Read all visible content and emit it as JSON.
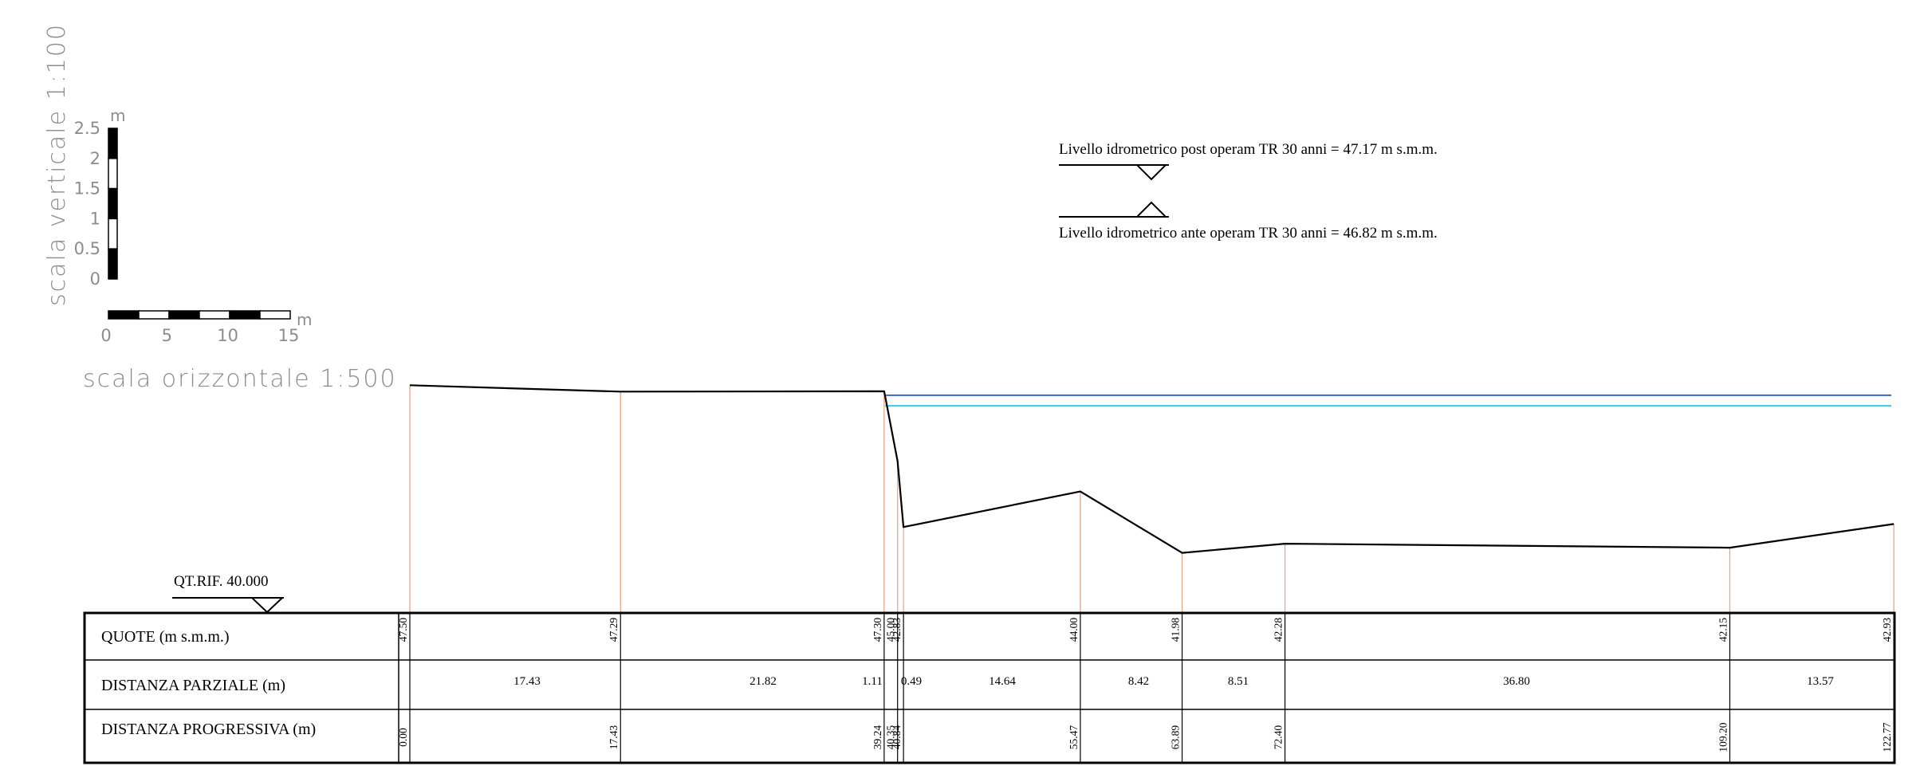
{
  "scales": {
    "vertical_title": "scala verticale 1:100",
    "horizontal_title": "scala orizzontale 1:500",
    "vertical_unit": "m",
    "horizontal_unit": "m",
    "vertical_ticks": [
      "2.5",
      "2",
      "1.5",
      "1",
      "0.5",
      "0"
    ],
    "horizontal_ticks": [
      "0",
      "5",
      "10",
      "15"
    ]
  },
  "water_levels": {
    "post_label": "Livello idrometrico post operam TR 30 anni = 47.17 m s.m.m.",
    "ante_label": "Livello idrometrico ante operam TR 30 anni = 46.82 m s.m.m.",
    "post_elevation": 47.17,
    "ante_elevation": 46.82,
    "post_color": "#3a67c8",
    "ante_color": "#22d6dc"
  },
  "reference": {
    "label": "QT.RIF. 40.000",
    "elevation": 40.0
  },
  "table": {
    "row_labels": {
      "quote": "QUOTE (m s.m.m.)",
      "parziale": "DISTANZA PARZIALE (m)",
      "progressiva": "DISTANZA PROGRESSIVA (m)"
    },
    "quote": [
      "47.50",
      "47.29",
      "47.30",
      "45.00",
      "42.83",
      "44.00",
      "41.98",
      "42.28",
      "42.15",
      "42.93"
    ],
    "progressiva": [
      "0.00",
      "17.43",
      "39.24",
      "40.35",
      "40.84",
      "55.47",
      "63.89",
      "72.40",
      "109.20",
      "122.77"
    ],
    "parziale": [
      "17.43",
      "21.82",
      "1.11",
      "0.49",
      "14.64",
      "8.42",
      "8.51",
      "36.80",
      "13.57"
    ]
  },
  "chart_data": {
    "type": "line",
    "series": [
      {
        "x": [
          0.0,
          17.43,
          39.24,
          40.35,
          40.84,
          55.47,
          63.89,
          72.4,
          109.2,
          122.77
        ],
        "y": [
          47.5,
          47.29,
          47.3,
          45.0,
          42.83,
          44.0,
          41.98,
          42.28,
          42.15,
          42.93
        ]
      }
    ],
    "profile_color": "#000000",
    "station_line_color": "#e8a48c",
    "grid": false
  }
}
